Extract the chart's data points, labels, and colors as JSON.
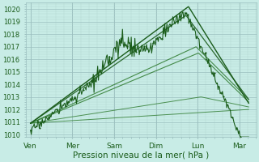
{
  "bg_color": "#c8ece6",
  "grid_major_color": "#9bbfbf",
  "grid_minor_color": "#b0d4d0",
  "line_dark": "#1a5c1a",
  "line_med": "#2d7a2d",
  "xlabel": "Pression niveau de la mer( hPa )",
  "ylim": [
    1009.8,
    1020.5
  ],
  "yticks": [
    1010,
    1011,
    1012,
    1013,
    1014,
    1015,
    1016,
    1017,
    1018,
    1019,
    1020
  ],
  "xtick_labels": [
    "Ven",
    "Mer",
    "Sam",
    "Dim",
    "Lun",
    "Mar"
  ],
  "xlabel_fontsize": 7.5,
  "ytick_fontsize": 6,
  "xtick_fontsize": 6.5,
  "day_positions": [
    0.0,
    0.833,
    1.667,
    2.5,
    3.333,
    4.167
  ],
  "xlim": [
    -0.1,
    4.5
  ],
  "n_x_minor": 5
}
